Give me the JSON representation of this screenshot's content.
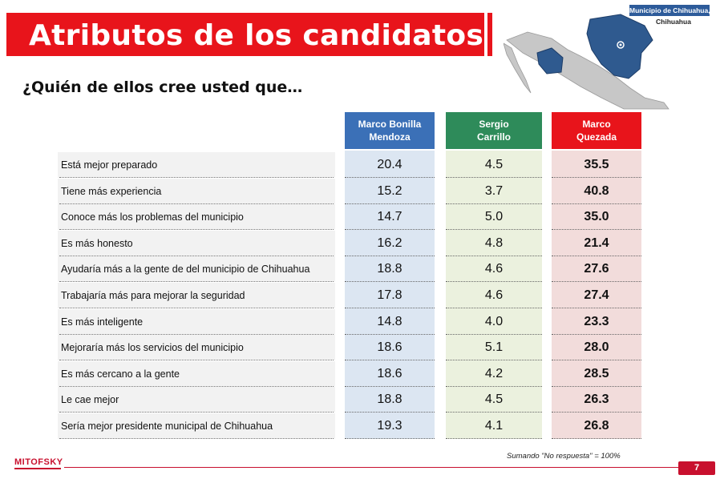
{
  "title": "Atributos de los candidatos",
  "subtitle": "¿Quién de ellos cree usted que…",
  "map": {
    "label_line1": "Municipio de Chihuahua,",
    "label_line2": "Chihuahua"
  },
  "colors": {
    "title_red": "#e8141b",
    "blue": "#3b70b7",
    "green": "#2e8b5a",
    "red": "#e8141b",
    "blue_bg": "#dce6f2",
    "green_bg": "#ebf1de",
    "red_bg": "#f2dcdb"
  },
  "chart_data": {
    "type": "table",
    "columns": [
      {
        "name_line1": "Marco Bonilla",
        "name_line2": "Mendoza"
      },
      {
        "name_line1": "Sergio",
        "name_line2": "Carrillo"
      },
      {
        "name_line1": "Marco",
        "name_line2": "Quezada"
      }
    ],
    "rows": [
      {
        "label": "Está mejor preparado",
        "values": [
          "20.4",
          "4.5",
          "35.5"
        ]
      },
      {
        "label": "Tiene más experiencia",
        "values": [
          "15.2",
          "3.7",
          "40.8"
        ]
      },
      {
        "label": "Conoce más los problemas del municipio",
        "values": [
          "14.7",
          "5.0",
          "35.0"
        ]
      },
      {
        "label": "Es más honesto",
        "values": [
          "16.2",
          "4.8",
          "21.4"
        ]
      },
      {
        "label": "Ayudaría más a la gente de del municipio de Chihuahua",
        "values": [
          "18.8",
          "4.6",
          "27.6"
        ]
      },
      {
        "label": "Trabajaría más para mejorar la seguridad",
        "values": [
          "17.8",
          "4.6",
          "27.4"
        ]
      },
      {
        "label": "Es más inteligente",
        "values": [
          "14.8",
          "4.0",
          "23.3"
        ]
      },
      {
        "label": "Mejoraría más los servicios del municipio",
        "values": [
          "18.6",
          "5.1",
          "28.0"
        ]
      },
      {
        "label": "Es más cercano a la gente",
        "values": [
          "18.6",
          "4.2",
          "28.5"
        ]
      },
      {
        "label": "Le cae mejor",
        "values": [
          "18.8",
          "4.5",
          "26.3"
        ]
      },
      {
        "label": "Sería mejor presidente municipal de Chihuahua",
        "values": [
          "19.3",
          "4.1",
          "26.8"
        ]
      }
    ]
  },
  "footnote": "Sumando \"No respuesta\" = 100%",
  "logo": "MITOFSKY",
  "page_number": "7"
}
